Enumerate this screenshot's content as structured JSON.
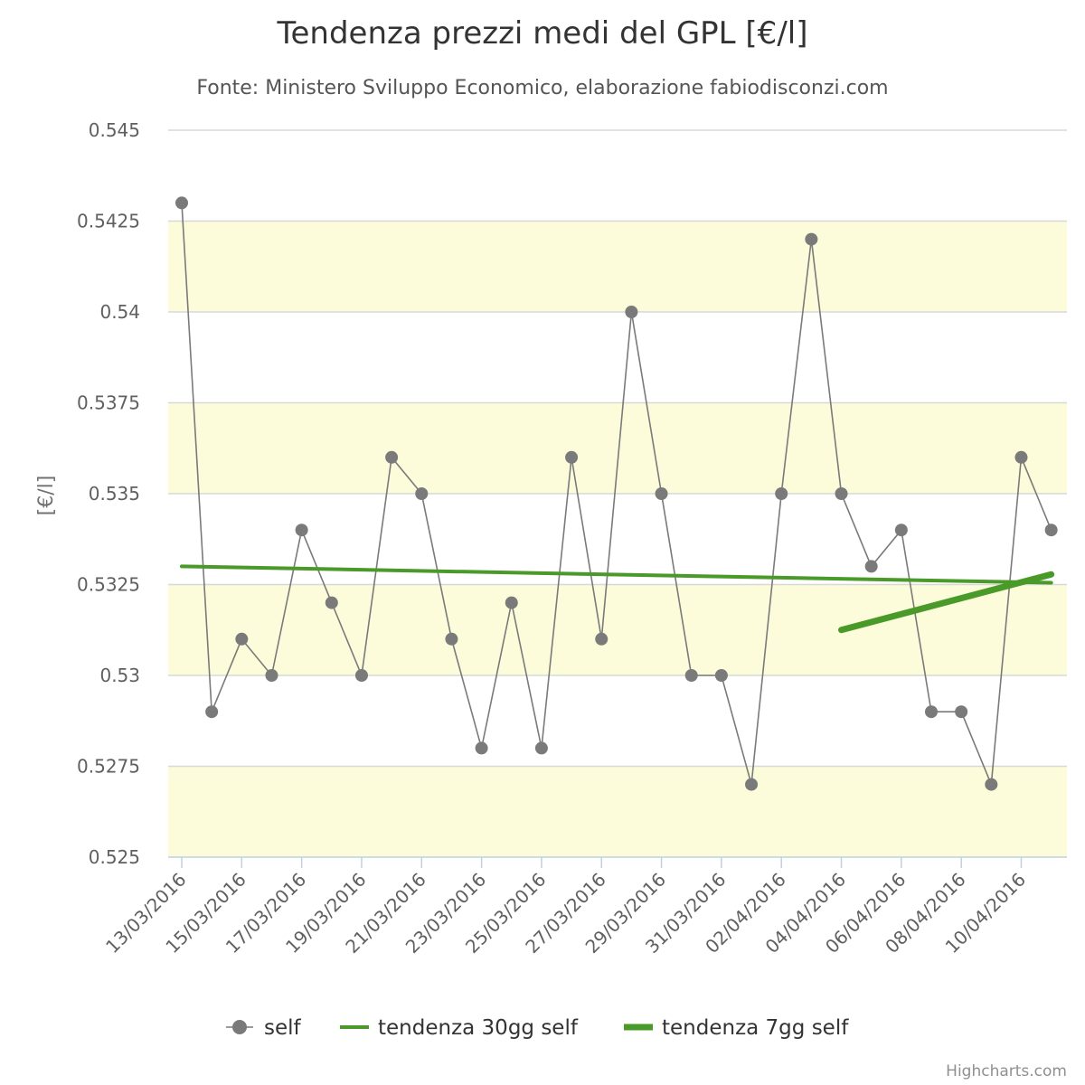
{
  "chart_data": {
    "type": "line",
    "title": "Tendenza prezzi medi del GPL [€/l]",
    "subtitle": "Fonte: Ministero Sviluppo Economico, elaborazione fabiodisconzi.com",
    "ylabel": "[€/l]",
    "ylim": [
      0.525,
      0.545
    ],
    "yticks": [
      "0.525",
      "0.5275",
      "0.53",
      "0.5325",
      "0.535",
      "0.5375",
      "0.54",
      "0.5425",
      "0.545"
    ],
    "x": [
      "13/03/2016",
      "14/03/2016",
      "15/03/2016",
      "16/03/2016",
      "17/03/2016",
      "18/03/2016",
      "19/03/2016",
      "20/03/2016",
      "21/03/2016",
      "22/03/2016",
      "23/03/2016",
      "24/03/2016",
      "25/03/2016",
      "26/03/2016",
      "27/03/2016",
      "28/03/2016",
      "29/03/2016",
      "30/03/2016",
      "31/03/2016",
      "01/04/2016",
      "02/04/2016",
      "03/04/2016",
      "04/04/2016",
      "05/04/2016",
      "06/04/2016",
      "07/04/2016",
      "08/04/2016",
      "09/04/2016",
      "10/04/2016",
      "11/04/2016"
    ],
    "xtick_labels": [
      "13/03/2016",
      "15/03/2016",
      "17/03/2016",
      "19/03/2016",
      "21/03/2016",
      "23/03/2016",
      "25/03/2016",
      "27/03/2016",
      "29/03/2016",
      "31/03/2016",
      "02/04/2016",
      "04/04/2016",
      "06/04/2016",
      "08/04/2016",
      "10/04/2016"
    ],
    "plot_bands": [
      [
        0.5275,
        0.5325
      ],
      [
        0.5325,
        0.5375
      ],
      [
        0.5375,
        0.5425
      ]
    ],
    "series": [
      {
        "name": "self",
        "color": "#7a7a7a",
        "x": [
          "13/03/2016",
          "14/03/2016",
          "15/03/2016",
          "16/03/2016",
          "17/03/2016",
          "18/03/2016",
          "19/03/2016",
          "20/03/2016",
          "21/03/2016",
          "22/03/2016",
          "23/03/2016",
          "24/03/2016",
          "25/03/2016",
          "26/03/2016",
          "27/03/2016",
          "28/03/2016",
          "29/03/2016",
          "30/03/2016",
          "31/03/2016",
          "01/04/2016",
          "02/04/2016",
          "03/04/2016",
          "04/04/2016",
          "05/04/2016",
          "06/04/2016",
          "07/04/2016",
          "08/04/2016",
          "09/04/2016",
          "10/04/2016",
          "11/04/2016"
        ],
        "values": [
          0.543,
          0.529,
          0.531,
          0.53,
          0.534,
          0.532,
          0.53,
          0.536,
          0.535,
          0.531,
          0.528,
          0.532,
          0.528,
          0.536,
          0.531,
          0.54,
          0.535,
          0.53,
          0.53,
          0.527,
          0.535,
          0.542,
          0.535,
          0.533,
          0.534,
          0.529,
          0.529,
          0.527,
          0.536,
          0.534
        ]
      },
      {
        "name": "tendenza 30gg self",
        "color": "#4a9a2a",
        "x": [
          "13/03/2016",
          "11/04/2016"
        ],
        "values": [
          0.533,
          0.53255
        ]
      },
      {
        "name": "tendenza 7gg self",
        "color": "#4a9a2a",
        "x": [
          "04/04/2016",
          "11/04/2016"
        ],
        "values": [
          0.53125,
          0.53278
        ]
      }
    ],
    "legend_position": "bottom-center",
    "grid": true
  },
  "credits": "Highcharts.com"
}
